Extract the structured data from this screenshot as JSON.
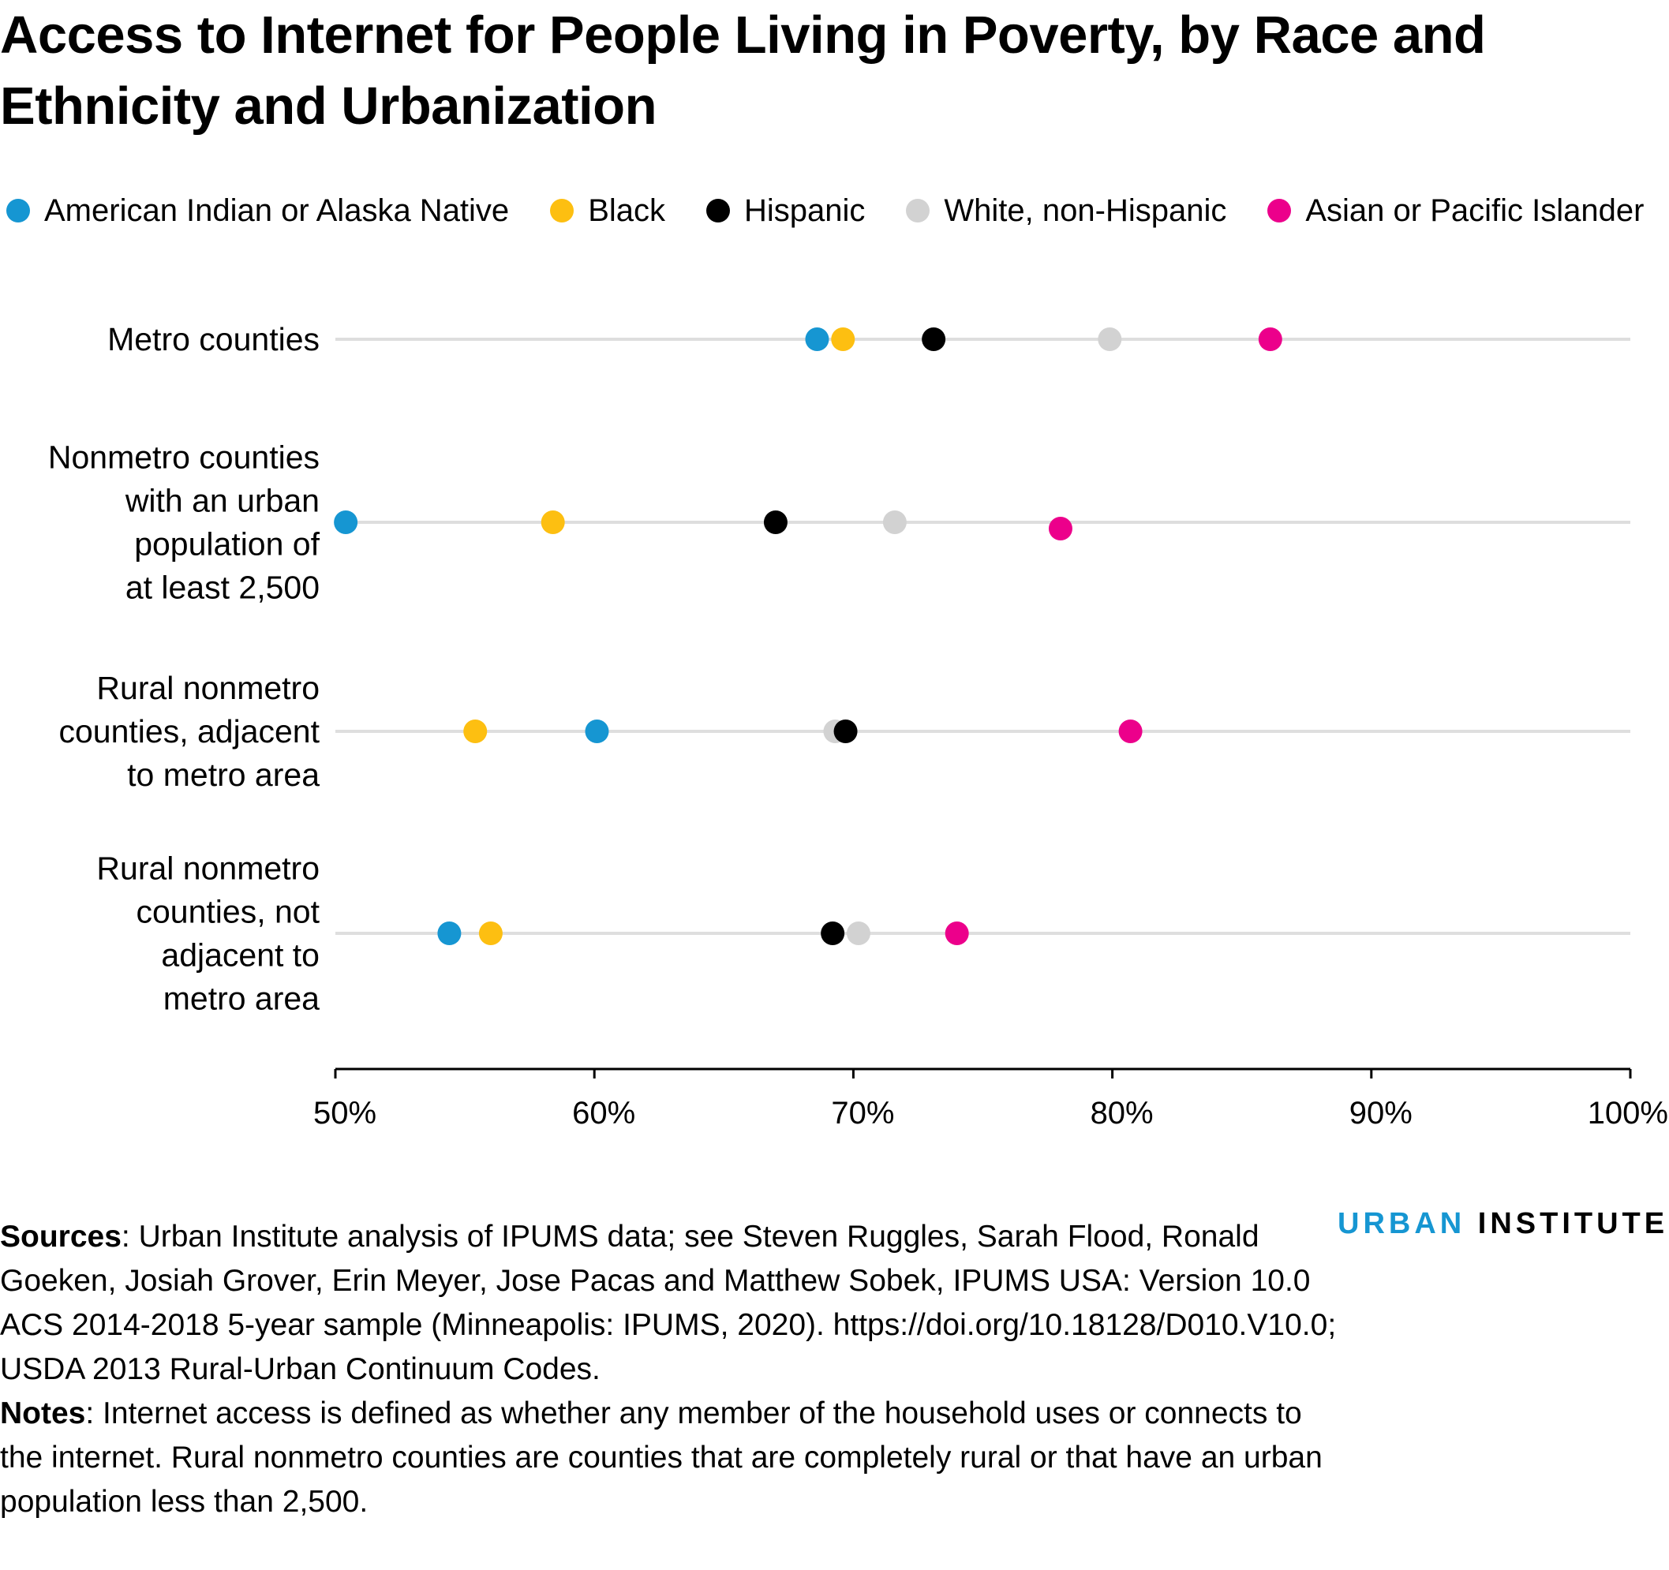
{
  "title": "Access to Internet for People Living in Poverty, by Race and Ethnicity and Urbanization",
  "legend": [
    {
      "label": "American Indian or Alaska Native",
      "color": "#1696d2"
    },
    {
      "label": "Black",
      "color": "#fdbf11"
    },
    {
      "label": "Hispanic",
      "color": "#000000"
    },
    {
      "label": "White, non-Hispanic",
      "color": "#d2d2d2"
    },
    {
      "label": "Asian or Pacific Islander",
      "color": "#ec008b"
    }
  ],
  "chart_data": {
    "type": "scatter",
    "title": "Access to Internet for People Living in Poverty, by Race and Ethnicity and Urbanization",
    "xlabel": "",
    "ylabel": "",
    "xlim": [
      50,
      100
    ],
    "x_ticks": [
      "50%",
      "60%",
      "70%",
      "80%",
      "90%",
      "100%"
    ],
    "categories": [
      "Metro counties",
      "Nonmetro counties with an urban population of at least 2,500",
      "Rural nonmetro counties, adjacent to metro area",
      "Rural nonmetro counties, not adjacent to metro area"
    ],
    "category_label_lines": [
      [
        "Metro counties"
      ],
      [
        "Nonmetro counties",
        "with an urban",
        "population of",
        "at least 2,500"
      ],
      [
        "Rural nonmetro",
        "counties, adjacent",
        "to metro area"
      ],
      [
        "Rural nonmetro",
        "counties, not",
        "adjacent to",
        "metro area"
      ]
    ],
    "series": [
      {
        "name": "American Indian or Alaska Native",
        "color": "#1696d2",
        "values": [
          68.6,
          50.4,
          60.1,
          54.4
        ]
      },
      {
        "name": "Black",
        "color": "#fdbf11",
        "values": [
          69.6,
          58.4,
          55.4,
          56.0
        ]
      },
      {
        "name": "Hispanic",
        "color": "#000000",
        "values": [
          73.1,
          67.0,
          69.7,
          69.2
        ]
      },
      {
        "name": "White, non-Hispanic",
        "color": "#d2d2d2",
        "values": [
          79.9,
          71.6,
          69.3,
          70.2
        ]
      },
      {
        "name": "Asian or Pacific Islander",
        "color": "#ec008b",
        "values": [
          86.1,
          78.0,
          80.7,
          74.0
        ]
      }
    ],
    "grid": false,
    "legend_position": "top"
  },
  "footer": {
    "sources_label": "Sources",
    "sources_text": ": Urban Institute analysis of IPUMS data; see Steven Ruggles, Sarah Flood, Ronald Goeken, Josiah Grover, Erin Meyer, Jose Pacas and Matthew Sobek, IPUMS USA: Version 10.0 ACS 2014-2018 5-year sample (Minneapolis: IPUMS, 2020). https://doi.org/10.18128/D010.V10.0; USDA 2013 Rural-Urban Continuum Codes.",
    "notes_label": "Notes",
    "notes_text": ": Internet access is defined as whether any member of the household uses or connects to the internet. Rural nonmetro counties are counties that are completely rural or that have an urban population less than 2,500."
  },
  "brand": {
    "part1": "URBAN",
    "part2": " INSTITUTE"
  }
}
